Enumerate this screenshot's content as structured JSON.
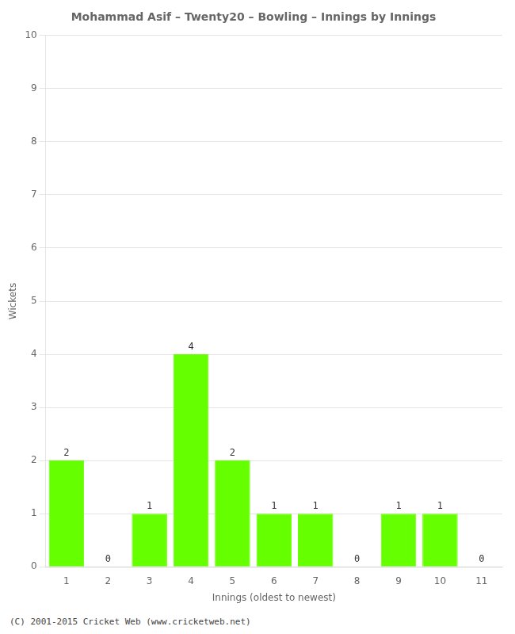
{
  "chart_data": {
    "type": "bar",
    "title": "Mohammad Asif – Twenty20 – Bowling – Innings by Innings",
    "xlabel": "Innings (oldest to newest)",
    "ylabel": "Wickets",
    "categories": [
      "1",
      "2",
      "3",
      "4",
      "5",
      "6",
      "7",
      "8",
      "9",
      "10",
      "11"
    ],
    "values": [
      2,
      0,
      1,
      4,
      2,
      1,
      1,
      0,
      1,
      1,
      0
    ],
    "color": "#66ff00",
    "ylim": [
      0,
      10
    ],
    "yticks": [
      0,
      1,
      2,
      3,
      4,
      5,
      6,
      7,
      8,
      9,
      10
    ],
    "grid": true,
    "data_labels": true,
    "footer": "(C) 2001-2015 Cricket Web (www.cricketweb.net)"
  }
}
